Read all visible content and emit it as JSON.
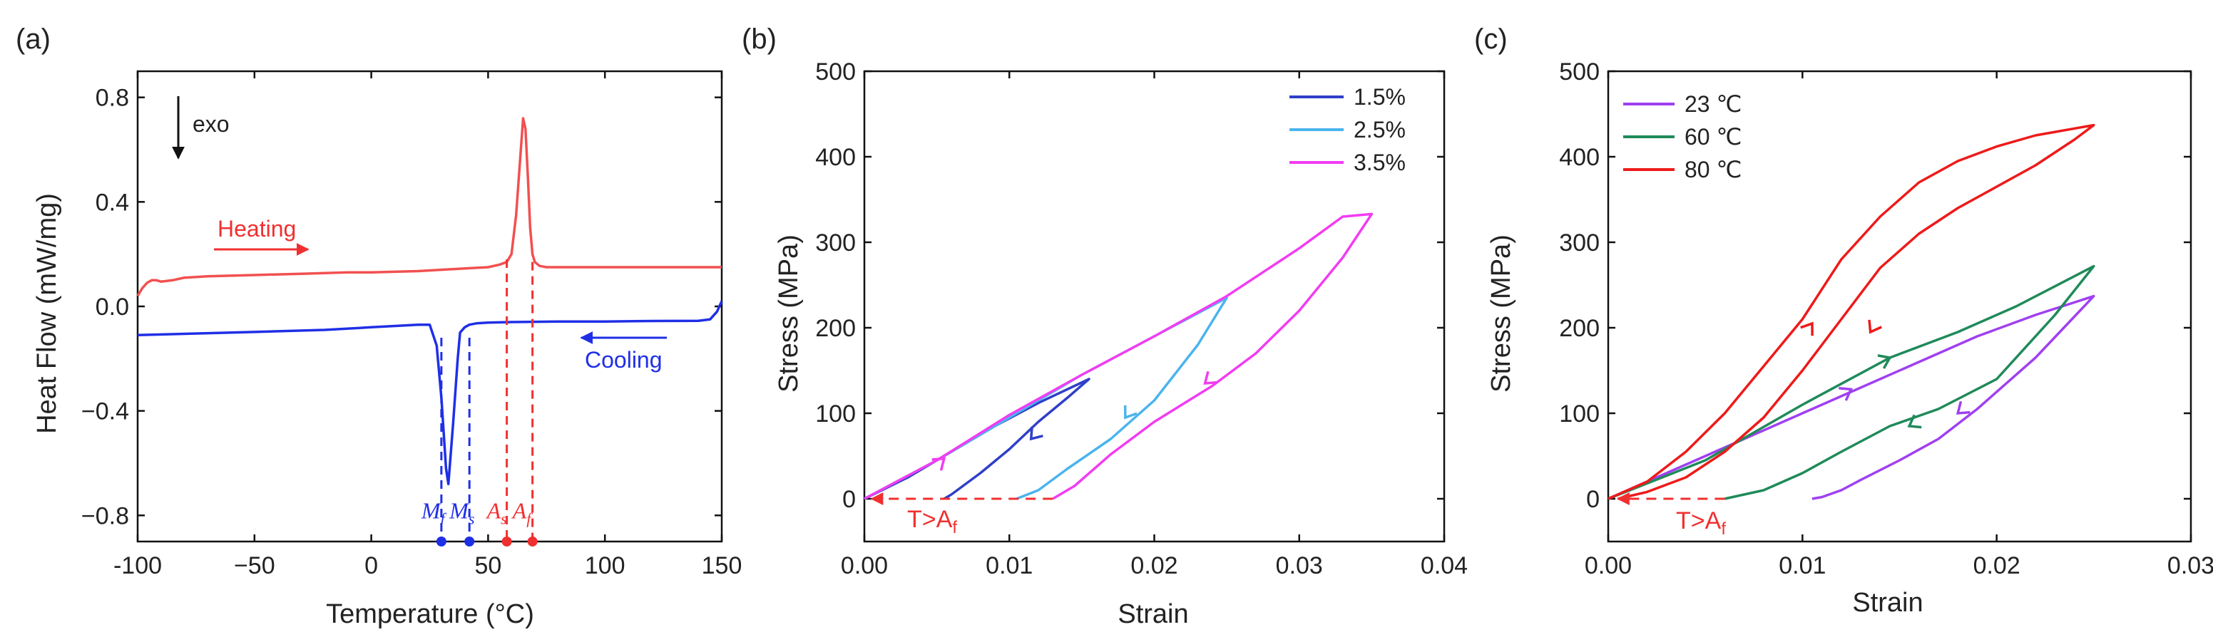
{
  "chart_data": [
    {
      "panel_label": "(a)",
      "type": "line",
      "xlabel": "Temperature (°C)",
      "ylabel": "Heat Flow (mW/mg)",
      "xlim": [
        -100,
        150
      ],
      "ylim": [
        -0.9,
        0.9
      ],
      "xticks": [
        -100,
        -50,
        0,
        50,
        100,
        150
      ],
      "yticks": [
        -0.8,
        -0.4,
        0.0,
        0.4,
        0.8
      ],
      "xtick_labels": [
        "-100",
        "−50",
        "0",
        "50",
        "100",
        "150"
      ],
      "ytick_labels": [
        "−0.8",
        "−0.4",
        "0.0",
        "0.4",
        "0.8"
      ],
      "grid": false,
      "annotations": {
        "exo": "exo",
        "heating": "Heating",
        "cooling": "Cooling",
        "Mf": {
          "base": "M",
          "sub": "f",
          "x": 30
        },
        "Ms": {
          "base": "M",
          "sub": "s",
          "x": 42
        },
        "As": {
          "base": "A",
          "sub": "s",
          "x": 58
        },
        "Af": {
          "base": "A",
          "sub": "f",
          "x": 69
        }
      },
      "series": [
        {
          "name": "Heating",
          "color": "#f25050",
          "x": [
            -100,
            -98,
            -96,
            -94,
            -92,
            -90,
            -85,
            -80,
            -70,
            -50,
            -30,
            -10,
            0,
            20,
            40,
            50,
            55,
            58,
            60,
            62,
            64,
            65,
            66,
            67,
            68,
            69,
            70,
            72,
            75,
            80,
            100,
            120,
            150
          ],
          "y": [
            0.04,
            0.07,
            0.09,
            0.1,
            0.1,
            0.095,
            0.1,
            0.11,
            0.115,
            0.12,
            0.125,
            0.13,
            0.13,
            0.135,
            0.145,
            0.15,
            0.16,
            0.17,
            0.2,
            0.35,
            0.6,
            0.72,
            0.68,
            0.5,
            0.3,
            0.2,
            0.17,
            0.155,
            0.15,
            0.15,
            0.15,
            0.15,
            0.15
          ]
        },
        {
          "name": "Cooling",
          "color": "#1f2fe6",
          "x": [
            -100,
            -80,
            -50,
            -20,
            0,
            20,
            25,
            28,
            30,
            32,
            33,
            35,
            37,
            38,
            40,
            42,
            45,
            50,
            60,
            80,
            100,
            120,
            140,
            145,
            148,
            150
          ],
          "y": [
            -0.11,
            -0.105,
            -0.098,
            -0.09,
            -0.08,
            -0.07,
            -0.07,
            -0.15,
            -0.35,
            -0.62,
            -0.68,
            -0.45,
            -0.2,
            -0.1,
            -0.08,
            -0.07,
            -0.065,
            -0.062,
            -0.06,
            -0.058,
            -0.058,
            -0.056,
            -0.055,
            -0.05,
            -0.02,
            0.02
          ]
        }
      ]
    },
    {
      "panel_label": "(b)",
      "type": "line",
      "xlabel": "Strain",
      "ylabel": "Stress (MPa)",
      "xlim": [
        0,
        0.04
      ],
      "ylim": [
        -50,
        500
      ],
      "xticks": [
        0,
        0.01,
        0.02,
        0.03,
        0.04
      ],
      "yticks": [
        0,
        100,
        200,
        300,
        400,
        500
      ],
      "xtick_labels": [
        "0.00",
        "0.01",
        "0.02",
        "0.03",
        "0.04"
      ],
      "ytick_labels": [
        "0",
        "100",
        "200",
        "300",
        "400",
        "500"
      ],
      "grid": false,
      "legend_position": "top-right",
      "annotation": {
        "base": "T>A",
        "sub": "f"
      },
      "series": [
        {
          "name": "1.5%",
          "color": "#2f3fc8",
          "x": [
            0,
            0.003,
            0.006,
            0.009,
            0.012,
            0.0155,
            0.014,
            0.012,
            0.01,
            0.008,
            0.006,
            0.0055
          ],
          "y": [
            0,
            25,
            55,
            85,
            112,
            140,
            118,
            90,
            58,
            30,
            5,
            0
          ]
        },
        {
          "name": "2.5%",
          "color": "#4ab4ee",
          "x": [
            0,
            0.005,
            0.01,
            0.015,
            0.02,
            0.025,
            0.023,
            0.02,
            0.017,
            0.014,
            0.012,
            0.0105
          ],
          "y": [
            0,
            45,
            95,
            145,
            190,
            235,
            180,
            115,
            70,
            35,
            10,
            0
          ]
        },
        {
          "name": "3.5%",
          "color": "#f23cf2",
          "x": [
            0,
            0.005,
            0.01,
            0.015,
            0.02,
            0.025,
            0.03,
            0.033,
            0.035,
            0.033,
            0.03,
            0.027,
            0.024,
            0.02,
            0.017,
            0.0145,
            0.013
          ],
          "y": [
            0,
            45,
            98,
            145,
            190,
            237,
            293,
            330,
            333,
            282,
            220,
            170,
            132,
            90,
            52,
            15,
            0
          ]
        },
        {
          "name": "",
          "style": "dashed",
          "color": "#f03030",
          "x": [
            0.013,
            0.0005
          ],
          "y": [
            0,
            0
          ]
        }
      ]
    },
    {
      "panel_label": "(c)",
      "type": "line",
      "xlabel": "Strain",
      "ylabel": "Stress (MPa)",
      "xlim": [
        0,
        0.03
      ],
      "ylim": [
        -50,
        500
      ],
      "xticks": [
        0,
        0.01,
        0.02,
        0.03
      ],
      "yticks": [
        0,
        100,
        200,
        300,
        400,
        500
      ],
      "xtick_labels": [
        "0.00",
        "0.01",
        "0.02",
        "0.03"
      ],
      "ytick_labels": [
        "0",
        "100",
        "200",
        "300",
        "400",
        "500"
      ],
      "grid": false,
      "legend_position": "top-left",
      "annotation": {
        "base": "T>A",
        "sub": "f"
      },
      "series": [
        {
          "name": "23 ℃",
          "color": "#a040f0",
          "x": [
            0,
            0.005,
            0.01,
            0.013,
            0.016,
            0.019,
            0.022,
            0.025,
            0.022,
            0.019,
            0.017,
            0.015,
            0.013,
            0.012,
            0.011,
            0.0105
          ],
          "y": [
            0,
            50,
            100,
            130,
            160,
            190,
            215,
            237,
            165,
            105,
            70,
            45,
            22,
            10,
            2,
            0
          ]
        },
        {
          "name": "60 ℃",
          "color": "#1f8a5a",
          "x": [
            0,
            0.005,
            0.01,
            0.0145,
            0.018,
            0.021,
            0.025,
            0.023,
            0.02,
            0.017,
            0.0145,
            0.012,
            0.01,
            0.008,
            0.006
          ],
          "y": [
            0,
            45,
            110,
            165,
            195,
            225,
            272,
            215,
            140,
            105,
            85,
            55,
            30,
            10,
            0
          ]
        },
        {
          "name": "80 ℃",
          "color": "#ee1a1a",
          "x": [
            0,
            0.002,
            0.004,
            0.006,
            0.008,
            0.01,
            0.012,
            0.014,
            0.016,
            0.018,
            0.02,
            0.022,
            0.025,
            0.024,
            0.022,
            0.02,
            0.018,
            0.016,
            0.014,
            0.012,
            0.01,
            0.008,
            0.006,
            0.004,
            0.002,
            0.0005
          ],
          "y": [
            0,
            20,
            55,
            100,
            155,
            210,
            280,
            330,
            370,
            395,
            412,
            425,
            437,
            420,
            390,
            365,
            340,
            310,
            270,
            210,
            150,
            95,
            55,
            25,
            8,
            0
          ]
        },
        {
          "name": "",
          "style": "dashed",
          "color": "#f03030",
          "x": [
            0.006,
            0.0005
          ],
          "y": [
            0,
            0
          ]
        }
      ]
    }
  ]
}
